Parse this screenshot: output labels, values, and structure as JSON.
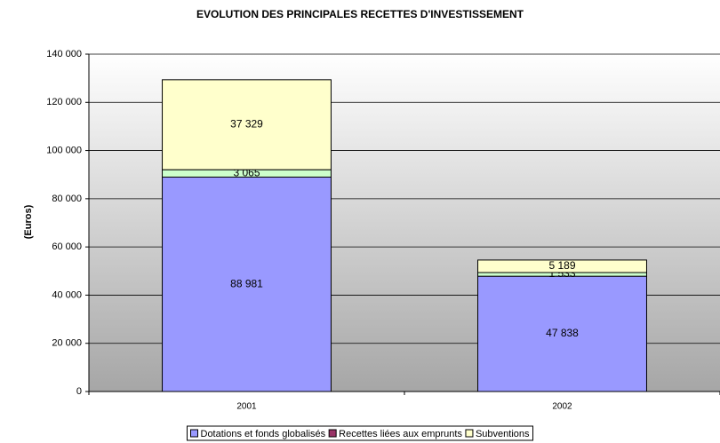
{
  "chart_data": {
    "type": "stacked_bar",
    "title": "EVOLUTION DES PRINCIPALES RECETTES D'INVESTISSEMENT",
    "y_label": "(Euros)",
    "categories": [
      "2001",
      "2002"
    ],
    "series": [
      {
        "name": "Dotations et fonds globalisés",
        "color": "#9999ff",
        "values": [
          88981,
          47838
        ],
        "value_labels": [
          "88 981",
          "47 838"
        ]
      },
      {
        "name": "Recettes liées aux emprunts",
        "color": "#ccffcc",
        "legend_color": "#993366",
        "values": [
          3065,
          1533
        ],
        "value_labels": [
          "3 065",
          "1 533"
        ]
      },
      {
        "name": "Subventions",
        "color": "#ffffcc",
        "values": [
          37329,
          5189
        ],
        "value_labels": [
          "37 329",
          "5 189"
        ]
      }
    ],
    "ylim": [
      0,
      140000
    ],
    "yticks": [
      0,
      {
        "value": 20000,
        "label": "20 000"
      },
      {
        "value": 40000,
        "label": "40 000"
      },
      {
        "value": 60000,
        "label": "60 000"
      },
      {
        "value": 80000,
        "label": "80 000"
      },
      {
        "value": 100000,
        "label": "100 000"
      },
      {
        "value": 120000,
        "label": "120 000"
      },
      {
        "value": 140000,
        "label": "140 000"
      }
    ],
    "grid": true,
    "legend": "bottom"
  }
}
